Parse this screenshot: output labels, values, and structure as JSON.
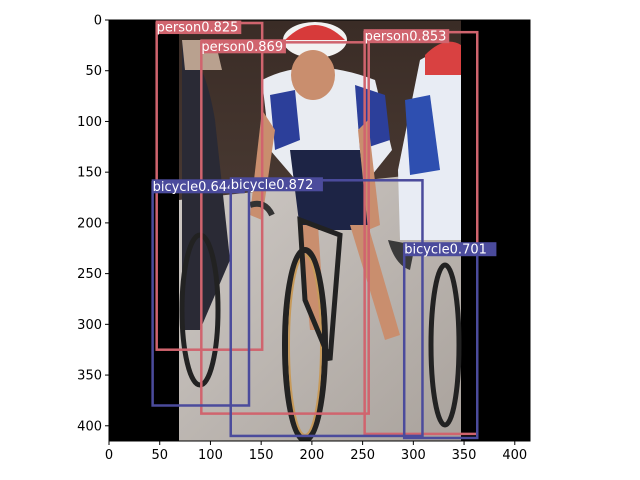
{
  "image": {
    "description_icon": "cyclists-photo",
    "width": 415,
    "height": 415
  },
  "axes": {
    "x_ticks": [
      "0",
      "50",
      "100",
      "150",
      "200",
      "250",
      "300",
      "350",
      "400"
    ],
    "y_ticks": [
      "0",
      "50",
      "100",
      "150",
      "200",
      "250",
      "300",
      "350",
      "400"
    ],
    "x_tick_values": [
      0,
      50,
      100,
      150,
      200,
      250,
      300,
      350,
      400
    ],
    "y_tick_values": [
      0,
      50,
      100,
      150,
      200,
      250,
      300,
      350,
      400
    ],
    "xlim": [
      0,
      415
    ],
    "ylim": [
      415,
      0
    ]
  },
  "colors": {
    "person": "#d0646e",
    "bicycle": "#4b4b9c",
    "padding": "#000000"
  },
  "detections": [
    {
      "cls": "person",
      "label": "person0.825",
      "x1": 47,
      "y1": 3,
      "x2": 151,
      "y2": 325
    },
    {
      "cls": "person",
      "label": "person0.869",
      "x1": 91,
      "y1": 22,
      "x2": 256,
      "y2": 388
    },
    {
      "cls": "person",
      "label": "person0.853",
      "x1": 252,
      "y1": 12,
      "x2": 363,
      "y2": 408
    },
    {
      "cls": "bicycle",
      "label": "bicycle0.644",
      "x1": 43,
      "y1": 160,
      "x2": 138,
      "y2": 380
    },
    {
      "cls": "bicycle",
      "label": "bicycle0.872",
      "x1": 120,
      "y1": 158,
      "x2": 309,
      "y2": 410
    },
    {
      "cls": "bicycle",
      "label": "bicycle0.701",
      "x1": 291,
      "y1": 222,
      "x2": 363,
      "y2": 412
    }
  ]
}
